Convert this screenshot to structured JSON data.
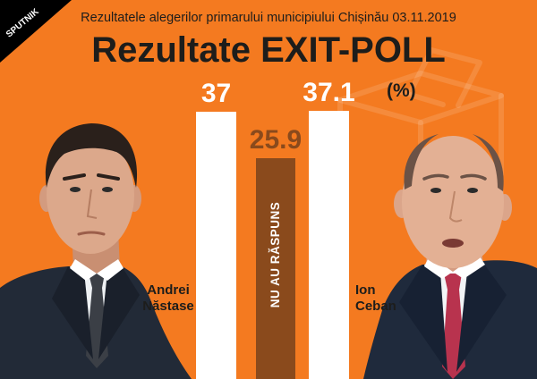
{
  "brand": {
    "name": "SPUTNIK"
  },
  "colors": {
    "background": "#f47a20",
    "text_dark": "#1d1d1b",
    "logo_background": "#000000",
    "logo_text": "#ffffff"
  },
  "chart_data": {
    "type": "bar",
    "subtitle": "Rezultatele alegerilor primarului municipiului Chișinău 03.11.2019",
    "title": "Rezultate EXIT-POLL",
    "unit": "(%)",
    "categories": [
      "Andrei Năstase",
      "NU AU RĂSPUNS",
      "Ion Ceban"
    ],
    "values": [
      37,
      25.9,
      37.1
    ],
    "bar_colors": [
      "#ffffff",
      "#8a4a1c",
      "#ffffff"
    ],
    "label_colors": [
      "#ffffff",
      "#8a4a1c",
      "#ffffff"
    ],
    "grid": false,
    "legend": "none"
  }
}
